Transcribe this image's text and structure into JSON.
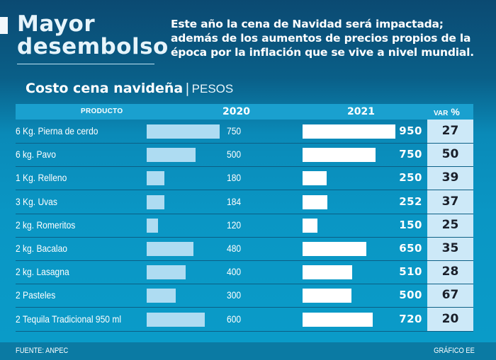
{
  "header": {
    "title_line1": "Mayor",
    "title_line2": "desembolso",
    "intro": "Este año la cena de Navidad será impactada; además de los aumentos de precios propios de la época por la inflación que se vive a nivel mundial."
  },
  "subtitle": {
    "title": "Costo cena navideña",
    "separator": "|",
    "unit": "PESOS"
  },
  "columns": {
    "product": "PRODUCTO",
    "y2020": "2020",
    "y2021": "2021",
    "var": "VAR",
    "var_pct": "%"
  },
  "colors": {
    "bar_2020": "#aedcf2",
    "bar_2021": "#ffffff",
    "var_column": "#cde9f8",
    "header_row": "#1aa0cf"
  },
  "footer": {
    "source": "FUENTE: ANPEC",
    "credit": "GRÁFICO EE"
  },
  "chart_data": {
    "type": "bar",
    "title": "Costo cena navideña",
    "unit": "PESOS",
    "categories": [
      "6 Kg. Pierna de cerdo",
      "6 kg. Pavo",
      "1 Kg. Relleno",
      "3 Kg. Uvas",
      "2 kg. Romeritos",
      "2 kg. Bacalao",
      "2 kg. Lasagna",
      "2 Pasteles",
      "2 Tequila Tradicional 950 ml"
    ],
    "series": [
      {
        "name": "2020",
        "values": [
          750,
          500,
          180,
          184,
          120,
          480,
          400,
          300,
          600
        ]
      },
      {
        "name": "2021",
        "values": [
          950,
          750,
          250,
          252,
          150,
          650,
          510,
          500,
          720
        ]
      }
    ],
    "var_pct": [
      27,
      50,
      39,
      37,
      25,
      35,
      28,
      67,
      20
    ],
    "orientation": "horizontal",
    "xlabel": "",
    "ylabel": ""
  }
}
